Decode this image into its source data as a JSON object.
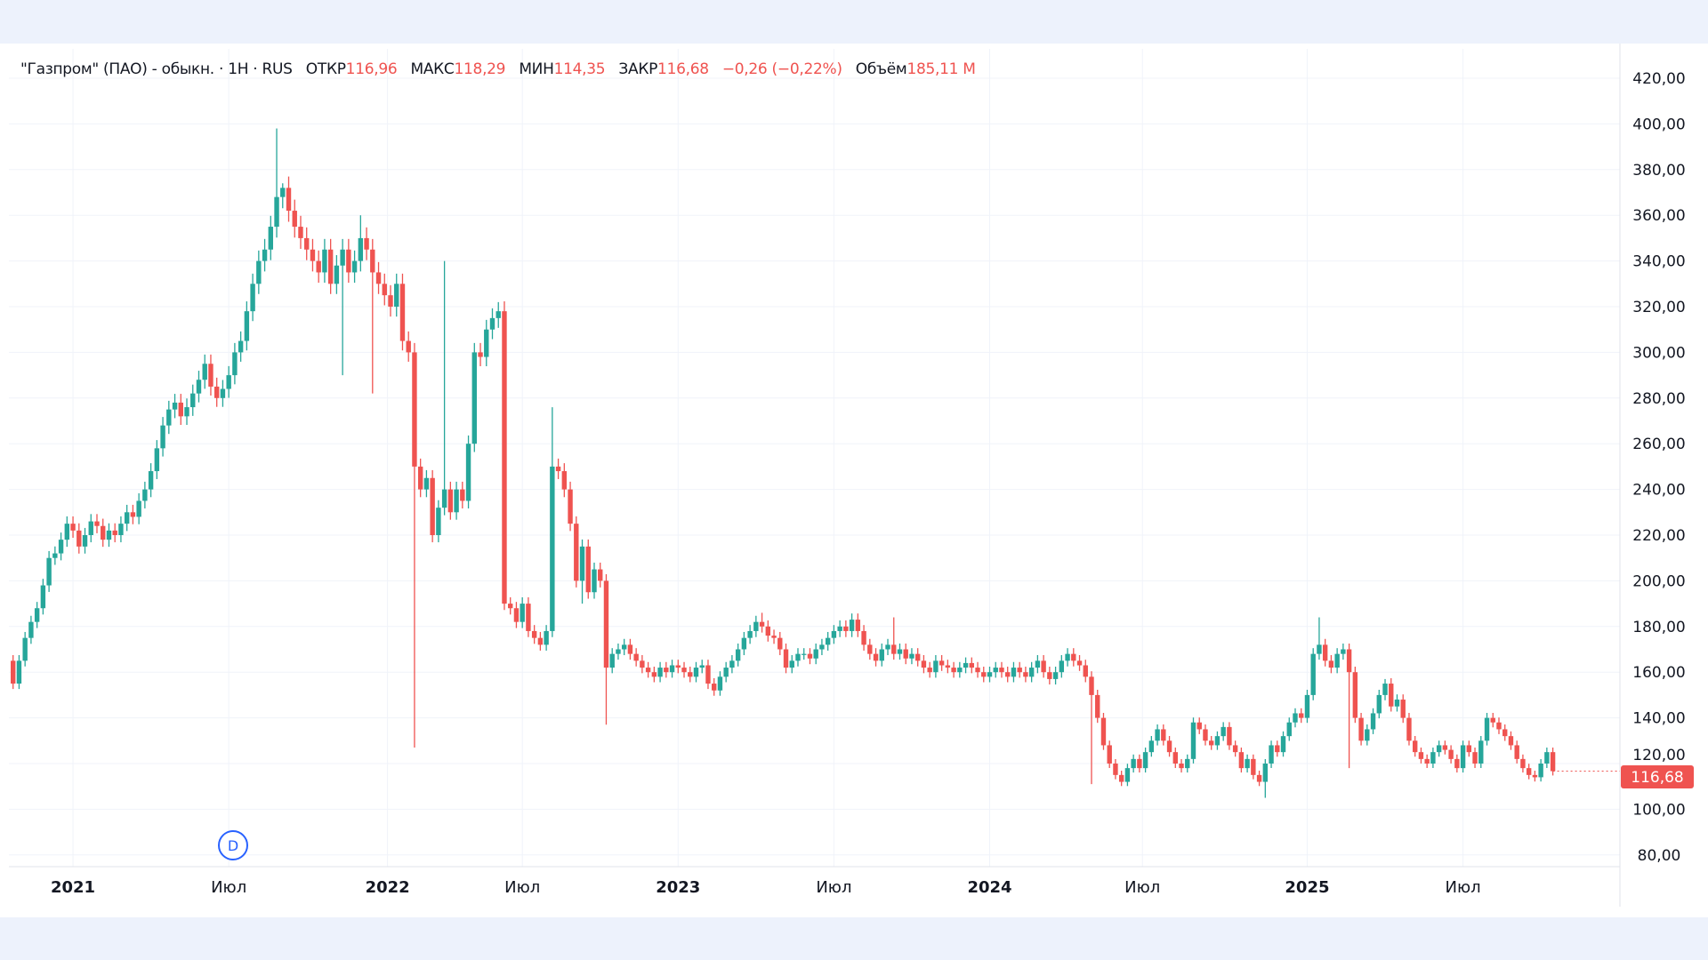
{
  "legend": {
    "title": "\"Газпром\" (ПАО) - обыкн. · 1Н · RUS",
    "open_label": "ОТКР",
    "open": "116,96",
    "high_label": "МАКС",
    "high": "118,29",
    "low_label": "МИН",
    "low": "114,35",
    "close_label": "ЗАКР",
    "close": "116,68",
    "change": "−0,26 (−0,22%)",
    "volume_label": "Объём",
    "volume": "185,11 M"
  },
  "last_price_label": "116,68",
  "marker_label": "D",
  "colors": {
    "up": "#26a69a",
    "down": "#ef5350",
    "grid": "#f0f3fa",
    "marker": "#2962ff"
  },
  "chart_data": {
    "type": "candlestick",
    "interval": "1 week",
    "ylim": [
      80,
      420
    ],
    "price_ticks": [
      "420,00",
      "400,00",
      "380,00",
      "360,00",
      "340,00",
      "320,00",
      "300,00",
      "280,00",
      "260,00",
      "240,00",
      "220,00",
      "200,00",
      "180,00",
      "160,00",
      "140,00",
      "120,00",
      "100,00",
      "80,00"
    ],
    "price_tick_values": [
      420,
      400,
      380,
      360,
      340,
      320,
      300,
      280,
      260,
      240,
      220,
      200,
      180,
      160,
      140,
      120,
      100,
      80
    ],
    "time_ticks": [
      {
        "label": "2021",
        "week": 10,
        "bold": true
      },
      {
        "label": "Июл",
        "week": 36,
        "bold": false
      },
      {
        "label": "2022",
        "week": 62.5,
        "bold": true
      },
      {
        "label": "Июл",
        "week": 85,
        "bold": false
      },
      {
        "label": "2023",
        "week": 111,
        "bold": true
      },
      {
        "label": "Июл",
        "week": 137,
        "bold": false
      },
      {
        "label": "2024",
        "week": 163,
        "bold": true
      },
      {
        "label": "Июл",
        "week": 188.5,
        "bold": false
      },
      {
        "label": "2025",
        "week": 216,
        "bold": true
      },
      {
        "label": "Июл",
        "week": 242,
        "bold": false
      }
    ],
    "first_open": 165,
    "closes": [
      155,
      165,
      175,
      182,
      188,
      198,
      210,
      212,
      218,
      225,
      222,
      215,
      220,
      226,
      224,
      218,
      222,
      220,
      225,
      230,
      228,
      235,
      240,
      248,
      258,
      268,
      275,
      278,
      272,
      276,
      282,
      288,
      295,
      285,
      280,
      284,
      290,
      300,
      305,
      318,
      330,
      340,
      345,
      355,
      368,
      372,
      362,
      355,
      350,
      345,
      340,
      335,
      345,
      330,
      338,
      345,
      335,
      340,
      350,
      345,
      335,
      330,
      325,
      320,
      330,
      305,
      300,
      250,
      240,
      245,
      220,
      232,
      240,
      230,
      240,
      235,
      260,
      300,
      298,
      310,
      315,
      318,
      190,
      188,
      182,
      190,
      178,
      175,
      172,
      178,
      250,
      248,
      240,
      225,
      200,
      215,
      195,
      205,
      200,
      162,
      168,
      170,
      172,
      168,
      165,
      162,
      160,
      158,
      162,
      160,
      163,
      162,
      160,
      158,
      162,
      163,
      155,
      152,
      158,
      162,
      165,
      170,
      175,
      178,
      182,
      180,
      176,
      175,
      170,
      162,
      165,
      168,
      168,
      166,
      170,
      172,
      175,
      178,
      180,
      178,
      183,
      178,
      172,
      168,
      165,
      170,
      172,
      168,
      170,
      166,
      168,
      165,
      162,
      160,
      165,
      163,
      162,
      160,
      162,
      164,
      162,
      160,
      158,
      160,
      162,
      160,
      158,
      162,
      160,
      158,
      162,
      165,
      160,
      157,
      160,
      165,
      168,
      165,
      163,
      158,
      150,
      140,
      128,
      120,
      115,
      112,
      118,
      122,
      118,
      125,
      130,
      135,
      130,
      125,
      120,
      118,
      122,
      138,
      135,
      130,
      128,
      132,
      136,
      128,
      125,
      118,
      122,
      115,
      112,
      120,
      128,
      125,
      132,
      138,
      142,
      140,
      150,
      168,
      172,
      165,
      162,
      168,
      170,
      160,
      140,
      130,
      135,
      142,
      150,
      155,
      145,
      148,
      140,
      130,
      125,
      122,
      120,
      125,
      128,
      126,
      122,
      118,
      128,
      125,
      120,
      130,
      140,
      138,
      135,
      132,
      128,
      122,
      118,
      115,
      114,
      120,
      125,
      116.68
    ],
    "wick_extremes": [
      {
        "week": 44,
        "high": 398
      },
      {
        "week": 45,
        "high": 374
      },
      {
        "week": 58,
        "high": 360
      },
      {
        "week": 55,
        "low": 290
      },
      {
        "week": 60,
        "low": 282
      },
      {
        "week": 67,
        "low": 127
      },
      {
        "week": 72,
        "high": 340
      },
      {
        "week": 81,
        "high": 322
      },
      {
        "week": 90,
        "high": 276
      },
      {
        "week": 95,
        "low": 190
      },
      {
        "week": 99,
        "low": 137
      },
      {
        "week": 125,
        "high": 186
      },
      {
        "week": 147,
        "high": 184
      },
      {
        "week": 180,
        "low": 111
      },
      {
        "week": 209,
        "low": 105
      },
      {
        "week": 218,
        "high": 184
      },
      {
        "week": 223,
        "low": 118
      },
      {
        "week": 229,
        "high": 157
      }
    ]
  }
}
